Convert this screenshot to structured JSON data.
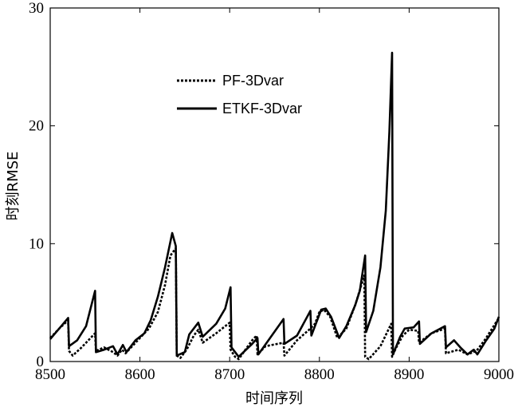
{
  "chart_data": {
    "type": "line",
    "title": "",
    "xlabel": "时间序列",
    "ylabel": "时刻RMSE",
    "xlim": [
      8500,
      9000
    ],
    "ylim": [
      0,
      30
    ],
    "xticks": [
      "8500",
      "8600",
      "8700",
      "8800",
      "8900",
      "9000"
    ],
    "yticks": [
      "0",
      "10",
      "20",
      "30"
    ],
    "legend_position": "top-center",
    "grid": false,
    "series": [
      {
        "name": "PF-3Dvar",
        "style": "dotted",
        "color": "#000000",
        "points": [
          [
            8500,
            2.0
          ],
          [
            8510,
            2.8
          ],
          [
            8520,
            3.5
          ],
          [
            8521,
            0.9
          ],
          [
            8525,
            0.5
          ],
          [
            8535,
            1.2
          ],
          [
            8550,
            2.4
          ],
          [
            8551,
            0.9
          ],
          [
            8560,
            1.2
          ],
          [
            8570,
            0.8
          ],
          [
            8575,
            0.5
          ],
          [
            8580,
            1.0
          ],
          [
            8584,
            0.7
          ],
          [
            8600,
            2.0
          ],
          [
            8610,
            2.8
          ],
          [
            8620,
            4.2
          ],
          [
            8628,
            6.5
          ],
          [
            8634,
            9.0
          ],
          [
            8640,
            9.6
          ],
          [
            8641,
            0.5
          ],
          [
            8645,
            0.3
          ],
          [
            8652,
            1.0
          ],
          [
            8660,
            2.2
          ],
          [
            8665,
            2.7
          ],
          [
            8670,
            1.6
          ],
          [
            8685,
            2.4
          ],
          [
            8700,
            3.3
          ],
          [
            8701,
            1.0
          ],
          [
            8706,
            0.4
          ],
          [
            8710,
            0.2
          ],
          [
            8725,
            1.8
          ],
          [
            8730,
            2.2
          ],
          [
            8731,
            0.6
          ],
          [
            8740,
            1.3
          ],
          [
            8760,
            1.6
          ],
          [
            8761,
            0.5
          ],
          [
            8775,
            1.8
          ],
          [
            8790,
            2.8
          ],
          [
            8795,
            3.2
          ],
          [
            8800,
            4.2
          ],
          [
            8805,
            4.4
          ],
          [
            8812,
            3.8
          ],
          [
            8820,
            2.0
          ],
          [
            8830,
            2.8
          ],
          [
            8840,
            4.8
          ],
          [
            8850,
            7.3
          ],
          [
            8851,
            0.4
          ],
          [
            8855,
            0.2
          ],
          [
            8868,
            1.3
          ],
          [
            8880,
            3.2
          ],
          [
            8881,
            0.4
          ],
          [
            8885,
            1.1
          ],
          [
            8893,
            2.2
          ],
          [
            8900,
            2.7
          ],
          [
            8910,
            2.6
          ],
          [
            8911,
            1.6
          ],
          [
            8925,
            2.4
          ],
          [
            8940,
            2.8
          ],
          [
            8941,
            0.7
          ],
          [
            8955,
            1.0
          ],
          [
            8965,
            0.6
          ],
          [
            8975,
            0.9
          ],
          [
            8985,
            1.9
          ],
          [
            9000,
            3.7
          ]
        ]
      },
      {
        "name": "ETKF-3Dvar",
        "style": "solid",
        "color": "#000000",
        "points": [
          [
            8500,
            1.9
          ],
          [
            8510,
            2.8
          ],
          [
            8520,
            3.7
          ],
          [
            8521,
            1.3
          ],
          [
            8530,
            1.8
          ],
          [
            8540,
            3.0
          ],
          [
            8550,
            6.0
          ],
          [
            8551,
            0.8
          ],
          [
            8560,
            1.0
          ],
          [
            8570,
            1.3
          ],
          [
            8575,
            0.6
          ],
          [
            8581,
            1.4
          ],
          [
            8585,
            0.8
          ],
          [
            8595,
            1.8
          ],
          [
            8605,
            2.4
          ],
          [
            8612,
            3.5
          ],
          [
            8620,
            5.5
          ],
          [
            8628,
            8.0
          ],
          [
            8636,
            10.9
          ],
          [
            8640,
            9.8
          ],
          [
            8641,
            0.5
          ],
          [
            8650,
            0.8
          ],
          [
            8655,
            2.3
          ],
          [
            8665,
            3.3
          ],
          [
            8670,
            2.1
          ],
          [
            8685,
            3.2
          ],
          [
            8695,
            4.5
          ],
          [
            8701,
            6.3
          ],
          [
            8702,
            1.2
          ],
          [
            8710,
            0.4
          ],
          [
            8725,
            1.5
          ],
          [
            8731,
            2.0
          ],
          [
            8732,
            0.6
          ],
          [
            8745,
            2.0
          ],
          [
            8760,
            3.6
          ],
          [
            8761,
            1.5
          ],
          [
            8775,
            2.2
          ],
          [
            8790,
            4.3
          ],
          [
            8791,
            2.2
          ],
          [
            8795,
            3.0
          ],
          [
            8802,
            4.4
          ],
          [
            8807,
            4.5
          ],
          [
            8813,
            3.8
          ],
          [
            8822,
            2.0
          ],
          [
            8830,
            3.0
          ],
          [
            8840,
            4.8
          ],
          [
            8845,
            6.0
          ],
          [
            8851,
            9.0
          ],
          [
            8852,
            2.5
          ],
          [
            8860,
            4.3
          ],
          [
            8868,
            8.0
          ],
          [
            8874,
            12.8
          ],
          [
            8878,
            19.5
          ],
          [
            8881,
            26.2
          ],
          [
            8882,
            0.6
          ],
          [
            8890,
            2.1
          ],
          [
            8895,
            2.8
          ],
          [
            8905,
            2.9
          ],
          [
            8911,
            3.4
          ],
          [
            8912,
            1.5
          ],
          [
            8925,
            2.4
          ],
          [
            8940,
            3.0
          ],
          [
            8941,
            1.2
          ],
          [
            8950,
            1.8
          ],
          [
            8957,
            1.2
          ],
          [
            8965,
            0.6
          ],
          [
            8972,
            1.0
          ],
          [
            8976,
            0.6
          ],
          [
            8985,
            1.7
          ],
          [
            8995,
            2.8
          ],
          [
            9000,
            3.8
          ]
        ]
      }
    ]
  }
}
